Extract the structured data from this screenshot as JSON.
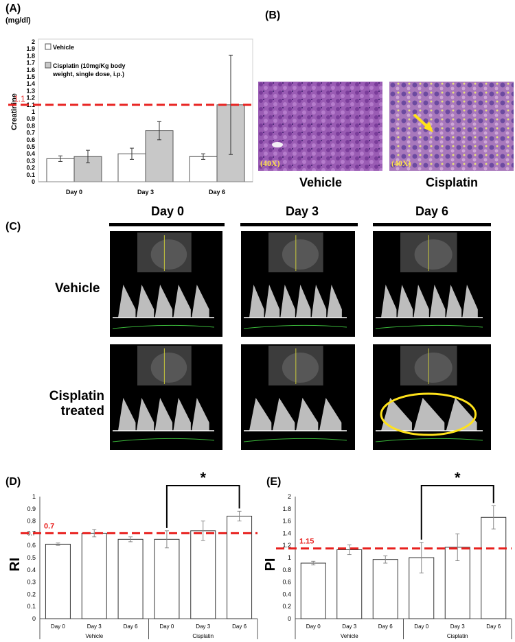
{
  "panelA": {
    "label": "(A)",
    "unit": "(mg/dl)",
    "ylabel": "Creatinine",
    "ref_label": "1.1",
    "legend": [
      "Vehicle",
      "Cisplatin (10mg/Kg body",
      "weight, single dose, i.p.)"
    ]
  },
  "panelB": {
    "label": "(B)",
    "mag": "(40X)",
    "caption_vehicle": "Vehicle",
    "caption_cisplatin": "Cisplatin"
  },
  "panelC": {
    "label": "(C)",
    "days": [
      "Day 0",
      "Day 3",
      "Day 6"
    ],
    "row_vehicle": "Vehicle",
    "row_cis_1": "Cisplatin",
    "row_cis_2": "treated"
  },
  "panelD": {
    "label": "(D)",
    "ylabel": "RI",
    "ref_label": "0.7",
    "star": "*",
    "groups": [
      "Vehicle",
      "Cisplatin"
    ]
  },
  "panelE": {
    "label": "(E)",
    "ylabel": "PI",
    "ref_label": "1.15",
    "star": "*",
    "groups": [
      "Vehicle",
      "Cisplatin"
    ]
  },
  "colors": {
    "reference_line": "#e8201e",
    "vehicle_bar": "#ffffff",
    "cisplatin_bar": "#c8c8c8",
    "histology": "#8b4fa8",
    "highlight": "#ffe21a"
  },
  "chart_data": [
    {
      "type": "bar",
      "categories": [
        "Day 0",
        "Day 3",
        "Day 6"
      ],
      "series": [
        {
          "name": "Vehicle",
          "values": [
            0.33,
            0.4,
            0.36
          ],
          "errors": [
            0.04,
            0.08,
            0.04
          ]
        },
        {
          "name": "Cisplatin (10mg/Kg body weight, single dose, i.p.)",
          "values": [
            0.36,
            0.73,
            1.1
          ],
          "errors": [
            0.09,
            0.13,
            0.71
          ]
        }
      ],
      "ylabel": "Creatinine",
      "ylim": [
        0,
        2
      ],
      "yticks": [
        "0",
        "0.1",
        "0.2",
        "0.3",
        "0.4",
        "0.5",
        "0.6",
        "0.7",
        "0.8",
        "0.9",
        "1",
        "1.1",
        "1.2",
        "1.3",
        "1.4",
        "1.5",
        "1.6",
        "1.7",
        "1.8",
        "1.9",
        "2"
      ],
      "reference_line": 1.1,
      "grid": false,
      "legend": "top-left"
    },
    {
      "type": "bar",
      "categories": [
        "Day 0",
        "Day 3",
        "Day 6",
        "Day 0",
        "Day 3",
        "Day 6"
      ],
      "groups": [
        "Vehicle",
        "Vehicle",
        "Vehicle",
        "Cisplatin",
        "Cisplatin",
        "Cisplatin"
      ],
      "values": [
        0.61,
        0.7,
        0.65,
        0.65,
        0.72,
        0.84
      ],
      "errors": [
        0.01,
        0.03,
        0.02,
        0.07,
        0.08,
        0.04
      ],
      "ylabel": "RI",
      "ylim": [
        0,
        1
      ],
      "yticks": [
        "0",
        "0.1",
        "0.2",
        "0.3",
        "0.4",
        "0.5",
        "0.6",
        "0.7",
        "0.8",
        "0.9",
        "1"
      ],
      "reference_line": 0.7,
      "grid": false
    },
    {
      "type": "bar",
      "categories": [
        "Day 0",
        "Day 3",
        "Day 6",
        "Day 0",
        "Day 3",
        "Day 6"
      ],
      "groups": [
        "Vehicle",
        "Vehicle",
        "Vehicle",
        "Cisplatin",
        "Cisplatin",
        "Cisplatin"
      ],
      "values": [
        0.91,
        1.13,
        0.97,
        1.0,
        1.17,
        1.66
      ],
      "errors": [
        0.03,
        0.08,
        0.06,
        0.25,
        0.22,
        0.19
      ],
      "ylabel": "PI",
      "ylim": [
        0,
        2
      ],
      "yticks": [
        "0",
        "0.2",
        "0.4",
        "0.6",
        "0.8",
        "1",
        "1.2",
        "1.4",
        "1.6",
        "1.8",
        "2"
      ],
      "reference_line": 1.15,
      "grid": false
    }
  ]
}
